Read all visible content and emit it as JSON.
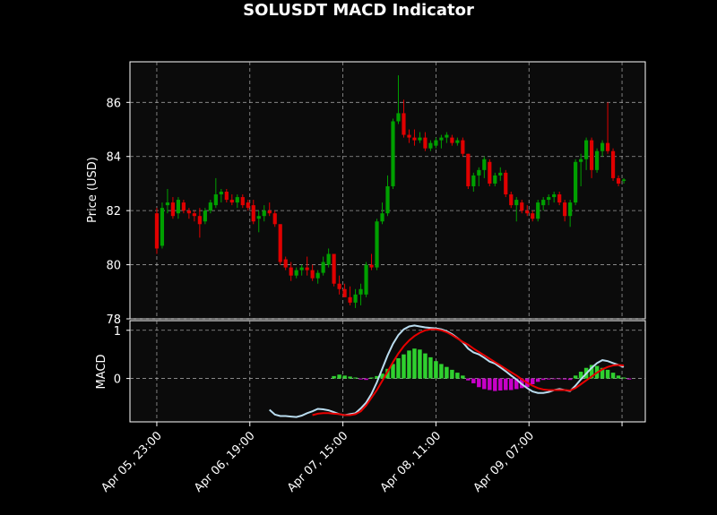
{
  "colors": {
    "background": "#000000",
    "panel": "#0b0b0b",
    "grid": "#bdbdbd",
    "up": "#00a000",
    "down": "#e00000",
    "macd_line": "#b9dcef",
    "signal_line": "#e80000",
    "hist_pos": "#2fd12f",
    "hist_neg": "#c800c8"
  },
  "chart_data": {
    "type": "candlestick",
    "title": "SOLUSDT MACD Indicator",
    "price_panel": {
      "ylabel": "Price (USD)",
      "ylim": [
        78,
        87.5
      ],
      "yticks": [
        78,
        80,
        82,
        84,
        86
      ],
      "grid": true,
      "candles": [
        [
          0.0,
          81.9,
          82.1,
          80.4,
          80.6
        ],
        [
          0.6,
          80.7,
          82.3,
          80.6,
          82.1
        ],
        [
          1.2,
          82.2,
          82.8,
          81.9,
          82.3
        ],
        [
          1.8,
          82.3,
          82.5,
          81.7,
          81.8
        ],
        [
          2.4,
          81.9,
          82.5,
          81.7,
          82.4
        ],
        [
          3.0,
          82.3,
          82.4,
          81.9,
          82.0
        ],
        [
          3.6,
          82.0,
          82.1,
          81.7,
          81.9
        ],
        [
          4.2,
          81.9,
          82.0,
          81.6,
          81.8
        ],
        [
          4.8,
          81.8,
          82.1,
          81.0,
          81.5
        ],
        [
          5.4,
          81.6,
          82.1,
          81.5,
          82.0
        ],
        [
          6.0,
          82.0,
          82.4,
          81.9,
          82.3
        ],
        [
          6.6,
          82.2,
          83.2,
          82.1,
          82.6
        ],
        [
          7.2,
          82.6,
          82.8,
          82.3,
          82.7
        ],
        [
          7.8,
          82.7,
          82.8,
          82.3,
          82.4
        ],
        [
          8.4,
          82.4,
          82.6,
          82.2,
          82.3
        ],
        [
          9.0,
          82.3,
          82.6,
          82.1,
          82.5
        ],
        [
          9.6,
          82.5,
          82.6,
          82.1,
          82.2
        ],
        [
          10.2,
          82.3,
          82.4,
          82.0,
          82.1
        ],
        [
          10.8,
          82.2,
          82.4,
          81.5,
          81.6
        ],
        [
          11.4,
          81.7,
          82.0,
          81.2,
          81.8
        ],
        [
          12.0,
          81.8,
          82.2,
          81.6,
          82.0
        ],
        [
          12.6,
          82.0,
          82.3,
          81.8,
          81.9
        ],
        [
          13.2,
          81.9,
          82.0,
          81.4,
          81.5
        ],
        [
          13.8,
          81.5,
          81.5,
          80.0,
          80.1
        ],
        [
          14.4,
          80.2,
          80.3,
          79.8,
          79.9
        ],
        [
          15.0,
          79.9,
          80.1,
          79.4,
          79.6
        ],
        [
          15.6,
          79.6,
          79.9,
          79.5,
          79.8
        ],
        [
          16.2,
          79.8,
          80.0,
          79.6,
          79.9
        ],
        [
          16.8,
          79.9,
          80.3,
          79.6,
          79.8
        ],
        [
          17.4,
          79.8,
          80.0,
          79.4,
          79.5
        ],
        [
          18.0,
          79.5,
          79.8,
          79.3,
          79.7
        ],
        [
          18.6,
          79.7,
          80.3,
          79.6,
          80.1
        ],
        [
          19.2,
          80.0,
          80.6,
          79.9,
          80.4
        ],
        [
          19.8,
          80.4,
          80.4,
          79.2,
          79.3
        ],
        [
          20.4,
          79.3,
          79.6,
          78.9,
          79.1
        ],
        [
          21.0,
          79.1,
          79.3,
          78.8,
          78.8
        ],
        [
          21.6,
          78.8,
          79.2,
          78.5,
          78.6
        ],
        [
          22.2,
          78.6,
          79.1,
          78.4,
          78.9
        ],
        [
          22.8,
          78.9,
          79.3,
          78.5,
          79.1
        ],
        [
          23.4,
          78.9,
          80.1,
          78.8,
          80.0
        ],
        [
          24.0,
          80.0,
          80.4,
          79.8,
          79.9
        ],
        [
          24.6,
          79.9,
          81.7,
          79.8,
          81.6
        ],
        [
          25.2,
          81.6,
          82.3,
          81.5,
          81.9
        ],
        [
          25.8,
          81.9,
          83.3,
          81.8,
          82.9
        ],
        [
          26.4,
          82.9,
          85.4,
          82.8,
          85.3
        ],
        [
          27.0,
          85.3,
          87.0,
          85.2,
          85.6
        ],
        [
          27.6,
          85.6,
          86.1,
          84.7,
          84.8
        ],
        [
          28.2,
          84.8,
          85.0,
          84.5,
          84.7
        ],
        [
          28.8,
          84.7,
          85.0,
          84.4,
          84.6
        ],
        [
          29.4,
          84.6,
          84.9,
          84.5,
          84.7
        ],
        [
          30.0,
          84.7,
          84.9,
          84.2,
          84.3
        ],
        [
          30.6,
          84.3,
          84.6,
          84.2,
          84.5
        ],
        [
          31.2,
          84.4,
          84.7,
          84.3,
          84.6
        ],
        [
          31.8,
          84.6,
          84.8,
          84.3,
          84.7
        ],
        [
          32.4,
          84.7,
          84.9,
          84.5,
          84.8
        ],
        [
          33.0,
          84.7,
          84.8,
          84.4,
          84.5
        ],
        [
          33.6,
          84.5,
          84.7,
          84.4,
          84.6
        ],
        [
          34.2,
          84.6,
          84.7,
          84.0,
          84.1
        ],
        [
          34.8,
          84.1,
          84.1,
          82.8,
          82.9
        ],
        [
          35.4,
          82.9,
          83.4,
          82.7,
          83.3
        ],
        [
          36.0,
          83.3,
          83.6,
          82.9,
          83.5
        ],
        [
          36.6,
          83.5,
          84.0,
          83.2,
          83.9
        ],
        [
          37.2,
          83.8,
          83.9,
          82.9,
          83.0
        ],
        [
          37.8,
          83.0,
          83.4,
          82.9,
          83.3
        ],
        [
          38.4,
          83.3,
          83.6,
          83.1,
          83.4
        ],
        [
          39.0,
          83.4,
          83.5,
          82.5,
          82.6
        ],
        [
          39.6,
          82.6,
          82.7,
          82.1,
          82.2
        ],
        [
          40.2,
          82.2,
          82.5,
          81.6,
          82.4
        ],
        [
          40.8,
          82.3,
          82.4,
          81.9,
          82.0
        ],
        [
          41.4,
          82.0,
          82.2,
          81.8,
          81.9
        ],
        [
          42.0,
          81.9,
          82.0,
          81.6,
          81.7
        ],
        [
          42.6,
          81.7,
          82.4,
          81.6,
          82.3
        ],
        [
          43.2,
          82.2,
          82.5,
          82.0,
          82.4
        ],
        [
          43.8,
          82.4,
          82.6,
          82.2,
          82.5
        ],
        [
          44.4,
          82.5,
          82.7,
          82.3,
          82.6
        ],
        [
          45.0,
          82.6,
          82.7,
          82.2,
          82.3
        ],
        [
          45.6,
          82.3,
          82.4,
          81.6,
          81.8
        ],
        [
          46.2,
          81.8,
          82.4,
          81.4,
          82.3
        ],
        [
          46.8,
          82.3,
          83.9,
          82.2,
          83.8
        ],
        [
          47.4,
          83.8,
          84.1,
          82.9,
          83.9
        ],
        [
          48.0,
          83.9,
          84.7,
          83.5,
          84.6
        ],
        [
          48.6,
          84.6,
          84.7,
          83.2,
          83.5
        ],
        [
          49.2,
          83.5,
          84.3,
          83.4,
          84.2
        ],
        [
          49.8,
          84.2,
          84.6,
          84.0,
          84.5
        ],
        [
          50.4,
          84.5,
          86.0,
          84.1,
          84.2
        ],
        [
          51.0,
          84.2,
          84.3,
          83.1,
          83.2
        ],
        [
          51.6,
          83.2,
          83.3,
          82.9,
          83.0
        ],
        [
          52.2,
          83.1,
          83.2,
          83.0,
          83.15
        ]
      ]
    },
    "macd_panel": {
      "ylabel": "MACD",
      "ylim": [
        -0.9,
        1.2
      ],
      "yticks": [
        0,
        1
      ],
      "grid": true,
      "macd": [
        [
          12.6,
          -0.65
        ],
        [
          13.2,
          -0.75
        ],
        [
          13.8,
          -0.78
        ],
        [
          14.4,
          -0.78
        ],
        [
          15.0,
          -0.79
        ],
        [
          15.6,
          -0.8
        ],
        [
          16.2,
          -0.77
        ],
        [
          16.8,
          -0.72
        ],
        [
          17.4,
          -0.68
        ],
        [
          18.0,
          -0.63
        ],
        [
          18.6,
          -0.64
        ],
        [
          19.2,
          -0.66
        ],
        [
          19.8,
          -0.7
        ],
        [
          20.4,
          -0.74
        ],
        [
          21.0,
          -0.76
        ],
        [
          21.6,
          -0.74
        ],
        [
          22.2,
          -0.72
        ],
        [
          22.8,
          -0.62
        ],
        [
          23.4,
          -0.5
        ],
        [
          24.0,
          -0.32
        ],
        [
          24.6,
          -0.08
        ],
        [
          25.2,
          0.2
        ],
        [
          25.8,
          0.48
        ],
        [
          26.4,
          0.72
        ],
        [
          27.0,
          0.9
        ],
        [
          27.6,
          1.02
        ],
        [
          28.2,
          1.08
        ],
        [
          28.8,
          1.1
        ],
        [
          29.4,
          1.08
        ],
        [
          30.0,
          1.06
        ],
        [
          30.6,
          1.05
        ],
        [
          31.2,
          1.04
        ],
        [
          31.8,
          1.02
        ],
        [
          32.4,
          0.98
        ],
        [
          33.0,
          0.92
        ],
        [
          33.6,
          0.84
        ],
        [
          34.2,
          0.75
        ],
        [
          34.8,
          0.62
        ],
        [
          35.4,
          0.54
        ],
        [
          36.0,
          0.5
        ],
        [
          36.6,
          0.43
        ],
        [
          37.2,
          0.35
        ],
        [
          37.8,
          0.31
        ],
        [
          38.4,
          0.23
        ],
        [
          39.0,
          0.15
        ],
        [
          39.6,
          0.06
        ],
        [
          40.2,
          -0.02
        ],
        [
          40.8,
          -0.12
        ],
        [
          41.4,
          -0.2
        ],
        [
          42.0,
          -0.27
        ],
        [
          42.6,
          -0.3
        ],
        [
          43.2,
          -0.3
        ],
        [
          43.8,
          -0.28
        ],
        [
          44.4,
          -0.24
        ],
        [
          45.0,
          -0.22
        ],
        [
          45.6,
          -0.24
        ],
        [
          46.2,
          -0.26
        ],
        [
          46.8,
          -0.15
        ],
        [
          47.4,
          -0.02
        ],
        [
          48.0,
          0.1
        ],
        [
          48.6,
          0.22
        ],
        [
          49.2,
          0.32
        ],
        [
          49.8,
          0.38
        ],
        [
          50.4,
          0.36
        ],
        [
          51.0,
          0.32
        ],
        [
          51.6,
          0.28
        ],
        [
          52.2,
          0.24
        ]
      ],
      "signal": [
        [
          17.4,
          -0.76
        ],
        [
          18.0,
          -0.73
        ],
        [
          18.6,
          -0.72
        ],
        [
          19.2,
          -0.72
        ],
        [
          19.8,
          -0.73
        ],
        [
          20.4,
          -0.74
        ],
        [
          21.0,
          -0.76
        ],
        [
          21.6,
          -0.76
        ],
        [
          22.2,
          -0.74
        ],
        [
          22.8,
          -0.68
        ],
        [
          23.4,
          -0.56
        ],
        [
          24.0,
          -0.4
        ],
        [
          24.6,
          -0.24
        ],
        [
          25.2,
          -0.05
        ],
        [
          25.8,
          0.14
        ],
        [
          26.4,
          0.34
        ],
        [
          27.0,
          0.52
        ],
        [
          27.6,
          0.67
        ],
        [
          28.2,
          0.79
        ],
        [
          28.8,
          0.88
        ],
        [
          29.4,
          0.95
        ],
        [
          30.0,
          1.0
        ],
        [
          30.6,
          1.02
        ],
        [
          31.2,
          1.02
        ],
        [
          31.8,
          1.0
        ],
        [
          32.4,
          0.96
        ],
        [
          33.0,
          0.9
        ],
        [
          33.6,
          0.83
        ],
        [
          34.2,
          0.76
        ],
        [
          34.8,
          0.7
        ],
        [
          35.4,
          0.62
        ],
        [
          36.0,
          0.55
        ],
        [
          36.6,
          0.48
        ],
        [
          37.2,
          0.41
        ],
        [
          37.8,
          0.34
        ],
        [
          38.4,
          0.27
        ],
        [
          39.0,
          0.2
        ],
        [
          39.6,
          0.13
        ],
        [
          40.2,
          0.06
        ],
        [
          40.8,
          -0.02
        ],
        [
          41.4,
          -0.09
        ],
        [
          42.0,
          -0.15
        ],
        [
          42.6,
          -0.2
        ],
        [
          43.2,
          -0.23
        ],
        [
          43.8,
          -0.24
        ],
        [
          44.4,
          -0.24
        ],
        [
          45.0,
          -0.24
        ],
        [
          45.6,
          -0.24
        ],
        [
          46.2,
          -0.25
        ],
        [
          46.8,
          -0.2
        ],
        [
          47.4,
          -0.12
        ],
        [
          48.0,
          -0.04
        ],
        [
          48.6,
          0.04
        ],
        [
          49.2,
          0.12
        ],
        [
          49.8,
          0.19
        ],
        [
          50.4,
          0.24
        ],
        [
          51.0,
          0.27
        ],
        [
          51.6,
          0.28
        ],
        [
          52.2,
          0.27
        ]
      ],
      "histogram": [
        [
          19.8,
          0.05
        ],
        [
          20.4,
          0.08
        ],
        [
          21.0,
          0.06
        ],
        [
          21.6,
          0.04
        ],
        [
          22.2,
          0.02
        ],
        [
          22.8,
          -0.02
        ],
        [
          23.4,
          -0.03
        ],
        [
          24.0,
          0.02
        ],
        [
          24.6,
          0.05
        ],
        [
          25.2,
          0.1
        ],
        [
          25.8,
          0.2
        ],
        [
          26.4,
          0.3
        ],
        [
          27.0,
          0.42
        ],
        [
          27.6,
          0.5
        ],
        [
          28.2,
          0.58
        ],
        [
          28.8,
          0.62
        ],
        [
          29.4,
          0.6
        ],
        [
          30.0,
          0.52
        ],
        [
          30.6,
          0.44
        ],
        [
          31.2,
          0.36
        ],
        [
          31.8,
          0.3
        ],
        [
          32.4,
          0.24
        ],
        [
          33.0,
          0.18
        ],
        [
          33.6,
          0.12
        ],
        [
          34.2,
          0.06
        ],
        [
          34.8,
          -0.04
        ],
        [
          35.4,
          -0.1
        ],
        [
          36.0,
          -0.18
        ],
        [
          36.6,
          -0.22
        ],
        [
          37.2,
          -0.24
        ],
        [
          37.8,
          -0.26
        ],
        [
          38.4,
          -0.25
        ],
        [
          39.0,
          -0.24
        ],
        [
          39.6,
          -0.24
        ],
        [
          40.2,
          -0.22
        ],
        [
          40.8,
          -0.2
        ],
        [
          41.4,
          -0.18
        ],
        [
          42.0,
          -0.12
        ],
        [
          42.6,
          -0.07
        ],
        [
          43.2,
          -0.03
        ],
        [
          43.8,
          -0.02
        ],
        [
          44.4,
          -0.01
        ],
        [
          45.0,
          -0.01
        ],
        [
          45.6,
          -0.02
        ],
        [
          46.2,
          -0.03
        ],
        [
          46.8,
          0.06
        ],
        [
          47.4,
          0.14
        ],
        [
          48.0,
          0.22
        ],
        [
          48.6,
          0.28
        ],
        [
          49.2,
          0.26
        ],
        [
          49.8,
          0.22
        ],
        [
          50.4,
          0.18
        ],
        [
          51.0,
          0.12
        ],
        [
          51.6,
          0.06
        ],
        [
          52.2,
          0.02
        ],
        [
          52.8,
          -0.02
        ]
      ]
    },
    "xlim": [
      -3.0,
      54.6
    ],
    "xticks": [
      {
        "pos": 0,
        "label": "Apr 05, 23:00"
      },
      {
        "pos": 10.4,
        "label": "Apr 06, 19:00"
      },
      {
        "pos": 20.8,
        "label": "Apr 07, 15:00"
      },
      {
        "pos": 31.2,
        "label": "Apr 08, 11:00"
      },
      {
        "pos": 41.6,
        "label": "Apr 09, 07:00"
      },
      {
        "pos": 52.0,
        "label": ""
      }
    ]
  }
}
